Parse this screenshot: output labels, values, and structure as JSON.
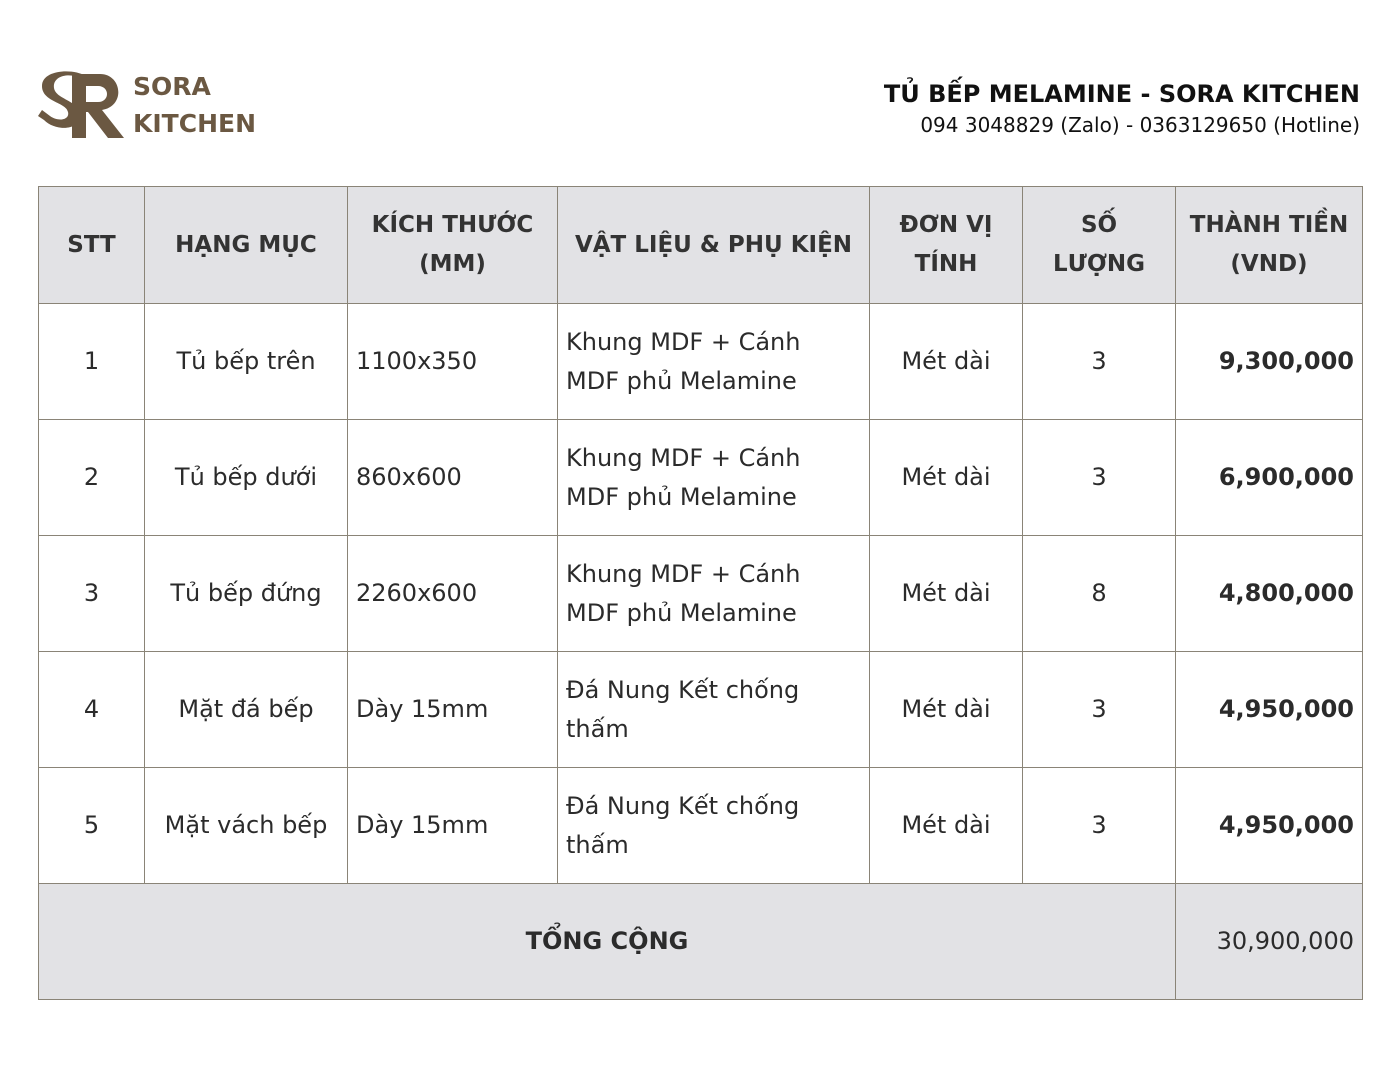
{
  "brand": {
    "logo_line1": "SORA",
    "logo_line2": "KITCHEN",
    "logo_monogram": "SR",
    "brand_color": "#6b5842"
  },
  "header": {
    "title": "TỦ BẾP MELAMINE - SORA KITCHEN",
    "contact": "094 3048829 (Zalo) - 0363129650 (Hotline)"
  },
  "table": {
    "columns": {
      "stt": "STT",
      "item": "HẠNG MỤC",
      "size": "KÍCH THƯỚC (MM)",
      "material": "VẬT LIỆU & PHỤ KIỆN",
      "unit": "ĐƠN VỊ TÍNH",
      "qty": "SỐ LƯỢNG",
      "amount": "THÀNH TIỀN (VND)"
    },
    "rows": [
      {
        "stt": "1",
        "item": "Tủ bếp trên",
        "size": "1100x350",
        "material": "Khung MDF + Cánh MDF phủ Melamine",
        "unit": "Mét dài",
        "qty": "3",
        "amount": "9,300,000"
      },
      {
        "stt": "2",
        "item": "Tủ bếp dưới",
        "size": "860x600",
        "material": "Khung MDF + Cánh MDF phủ Melamine",
        "unit": "Mét dài",
        "qty": "3",
        "amount": "6,900,000"
      },
      {
        "stt": "3",
        "item": "Tủ bếp đứng",
        "size": "2260x600",
        "material": "Khung MDF + Cánh MDF phủ Melamine",
        "unit": "Mét dài",
        "qty": "8",
        "amount": "4,800,000"
      },
      {
        "stt": "4",
        "item": "Mặt đá bếp",
        "size": "Dày 15mm",
        "material": "Đá Nung Kết chống thấm",
        "unit": "Mét dài",
        "qty": "3",
        "amount": "4,950,000"
      },
      {
        "stt": "5",
        "item": "Mặt vách bếp",
        "size": "Dày 15mm",
        "material": "Đá Nung Kết chống thấm",
        "unit": "Mét dài",
        "qty": "3",
        "amount": "4,950,000"
      }
    ],
    "total_label": "TỔNG CỘNG",
    "total_value": "30,900,000"
  }
}
